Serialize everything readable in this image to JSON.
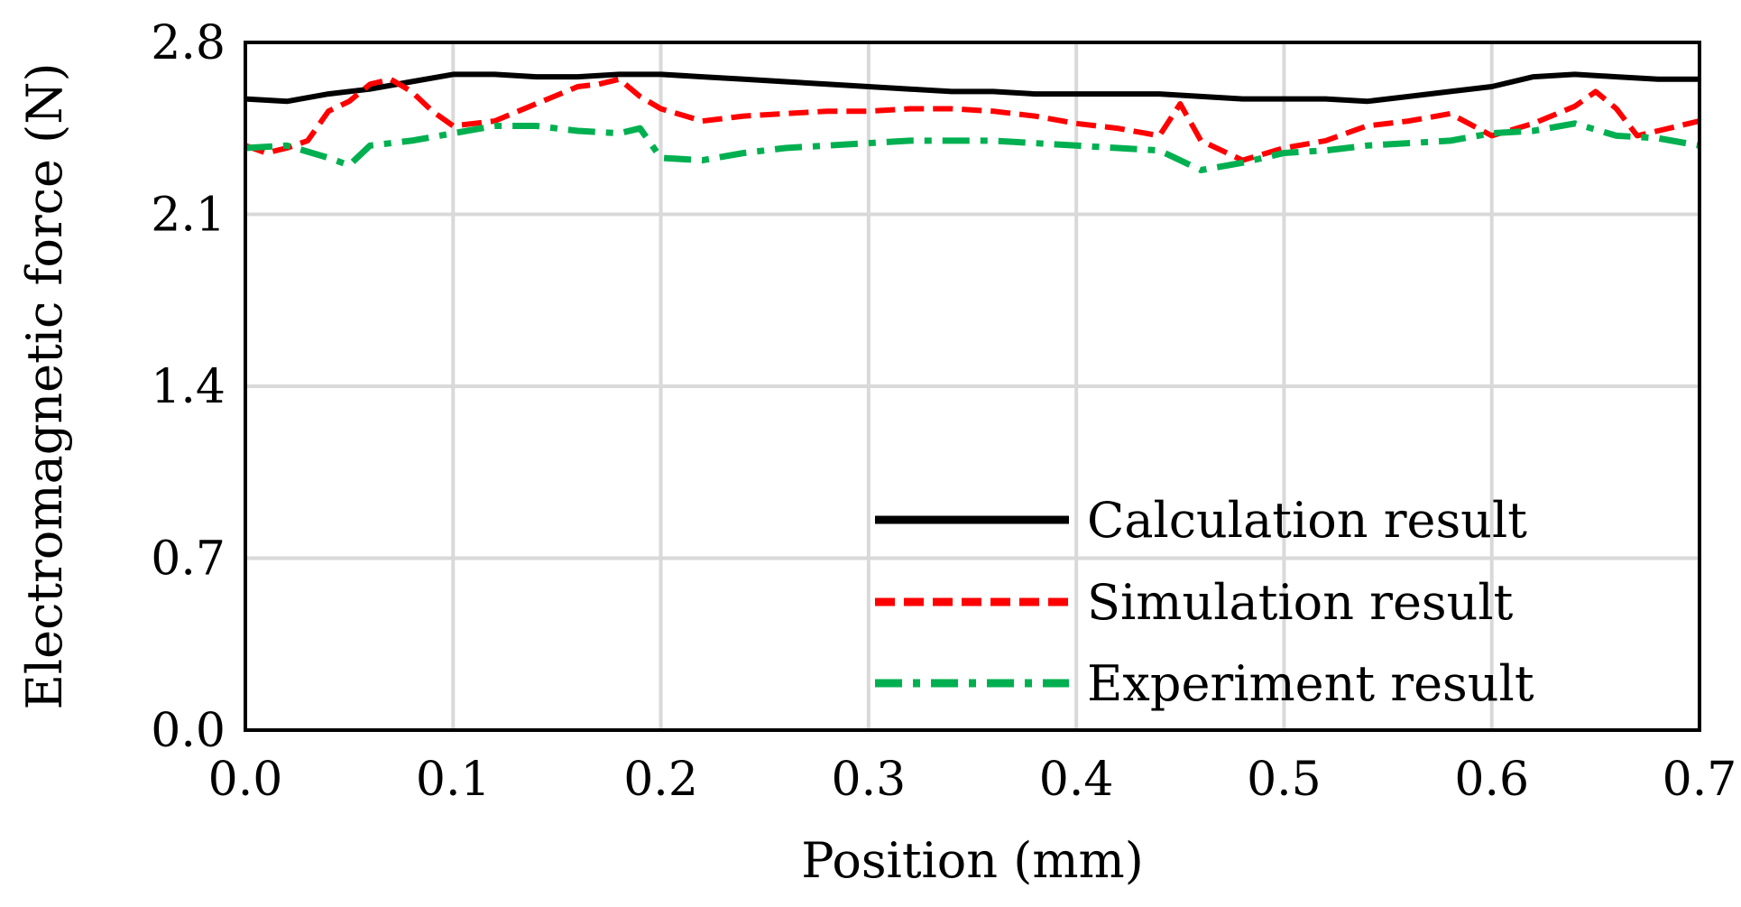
{
  "chart_data": {
    "type": "line",
    "title": "",
    "xlabel": "Position (mm)",
    "ylabel": "Electromagnetic force (N)",
    "xlim": [
      0.0,
      0.7
    ],
    "ylim": [
      0.0,
      2.8
    ],
    "x_ticks": [
      "0.0",
      "0.1",
      "0.2",
      "0.3",
      "0.4",
      "0.5",
      "0.6",
      "0.7"
    ],
    "y_ticks": [
      "0.0",
      "0.7",
      "1.4",
      "2.1",
      "2.8"
    ],
    "grid": true,
    "legend_position": "bottom-right",
    "series": [
      {
        "name": "Calculation result",
        "color": "#000000",
        "style": "solid",
        "x": [
          0.0,
          0.02,
          0.04,
          0.06,
          0.08,
          0.1,
          0.12,
          0.14,
          0.16,
          0.18,
          0.2,
          0.22,
          0.24,
          0.26,
          0.28,
          0.3,
          0.32,
          0.34,
          0.36,
          0.38,
          0.4,
          0.42,
          0.44,
          0.46,
          0.48,
          0.5,
          0.52,
          0.54,
          0.56,
          0.58,
          0.6,
          0.62,
          0.64,
          0.66,
          0.68,
          0.7
        ],
        "y": [
          2.57,
          2.56,
          2.59,
          2.61,
          2.64,
          2.67,
          2.67,
          2.66,
          2.66,
          2.67,
          2.67,
          2.66,
          2.65,
          2.64,
          2.63,
          2.62,
          2.61,
          2.6,
          2.6,
          2.59,
          2.59,
          2.59,
          2.59,
          2.58,
          2.57,
          2.57,
          2.57,
          2.56,
          2.58,
          2.6,
          2.62,
          2.66,
          2.67,
          2.66,
          2.65,
          2.65
        ]
      },
      {
        "name": "Simulation result",
        "color": "#ff0000",
        "style": "dashed",
        "x": [
          0.0,
          0.01,
          0.02,
          0.03,
          0.04,
          0.05,
          0.06,
          0.07,
          0.08,
          0.09,
          0.1,
          0.12,
          0.14,
          0.16,
          0.17,
          0.18,
          0.19,
          0.2,
          0.22,
          0.24,
          0.26,
          0.28,
          0.3,
          0.32,
          0.34,
          0.36,
          0.38,
          0.4,
          0.42,
          0.44,
          0.45,
          0.46,
          0.47,
          0.48,
          0.5,
          0.52,
          0.54,
          0.56,
          0.58,
          0.6,
          0.62,
          0.64,
          0.65,
          0.66,
          0.67,
          0.68,
          0.7
        ],
        "y": [
          2.38,
          2.35,
          2.37,
          2.4,
          2.52,
          2.56,
          2.63,
          2.65,
          2.6,
          2.52,
          2.46,
          2.48,
          2.55,
          2.62,
          2.63,
          2.65,
          2.58,
          2.53,
          2.48,
          2.5,
          2.51,
          2.52,
          2.52,
          2.53,
          2.53,
          2.52,
          2.5,
          2.47,
          2.45,
          2.42,
          2.55,
          2.4,
          2.36,
          2.32,
          2.37,
          2.4,
          2.46,
          2.48,
          2.51,
          2.42,
          2.47,
          2.54,
          2.6,
          2.53,
          2.42,
          2.44,
          2.48
        ]
      },
      {
        "name": "Experiment result",
        "color": "#00b050",
        "style": "dash-dot",
        "x": [
          0.0,
          0.02,
          0.04,
          0.05,
          0.06,
          0.08,
          0.1,
          0.12,
          0.14,
          0.16,
          0.18,
          0.19,
          0.2,
          0.22,
          0.24,
          0.26,
          0.28,
          0.3,
          0.32,
          0.34,
          0.36,
          0.38,
          0.4,
          0.42,
          0.44,
          0.46,
          0.48,
          0.5,
          0.52,
          0.54,
          0.56,
          0.58,
          0.6,
          0.62,
          0.64,
          0.66,
          0.68,
          0.7
        ],
        "y": [
          2.37,
          2.38,
          2.33,
          2.3,
          2.38,
          2.4,
          2.43,
          2.46,
          2.46,
          2.44,
          2.43,
          2.45,
          2.33,
          2.32,
          2.35,
          2.37,
          2.38,
          2.39,
          2.4,
          2.4,
          2.4,
          2.39,
          2.38,
          2.37,
          2.36,
          2.28,
          2.31,
          2.35,
          2.36,
          2.38,
          2.39,
          2.4,
          2.43,
          2.44,
          2.47,
          2.42,
          2.41,
          2.38
        ]
      }
    ]
  }
}
